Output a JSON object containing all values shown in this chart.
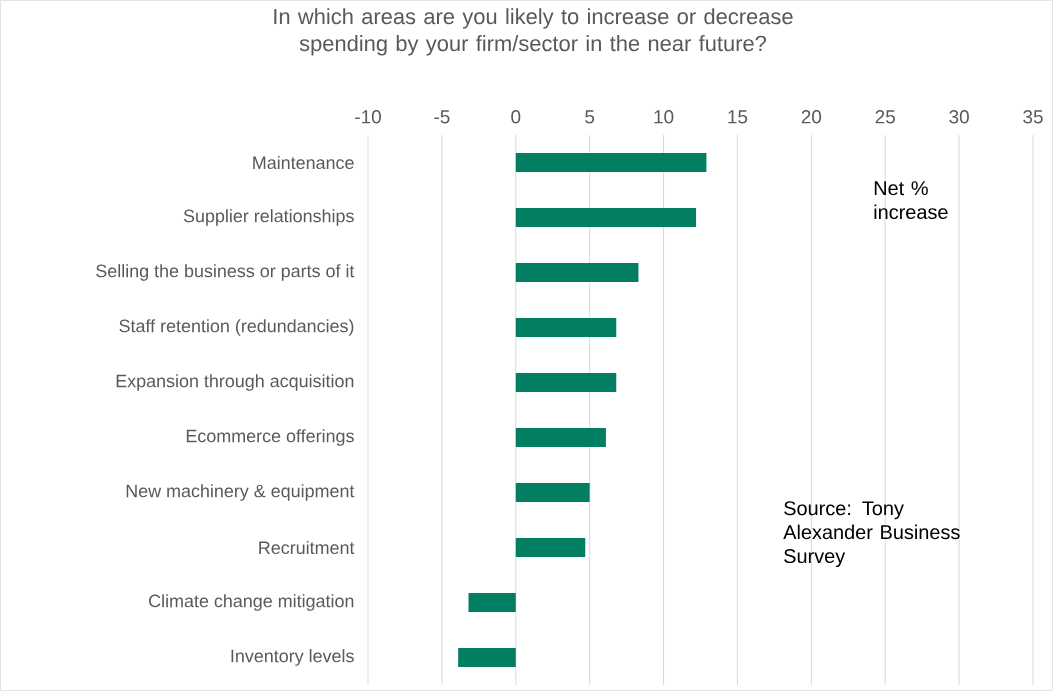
{
  "chart_data": {
    "type": "bar",
    "orientation": "horizontal",
    "title": "In which areas are you likely to increase or decrease spending by your firm/sector in the near future?",
    "categories": [
      "Maintenance",
      "Supplier relationships",
      "Selling the business or parts of it",
      "Staff retention (redundancies)",
      "Expansion through acquisition",
      "Ecommerce offerings",
      "New machinery & equipment",
      "Recruitment",
      "Climate change mitigation",
      "Inventory levels"
    ],
    "values": [
      12.9,
      12.2,
      8.3,
      6.8,
      6.8,
      6.1,
      5.0,
      4.7,
      -3.2,
      -3.9
    ],
    "color": "#027e63",
    "xlim": [
      -10,
      35
    ],
    "xticks": [
      -10,
      -5,
      0,
      5,
      10,
      15,
      20,
      25,
      30,
      35
    ],
    "grid": "x",
    "annotations": [
      "Net % increase",
      "Source: Tony Alexander Business Survey"
    ]
  }
}
